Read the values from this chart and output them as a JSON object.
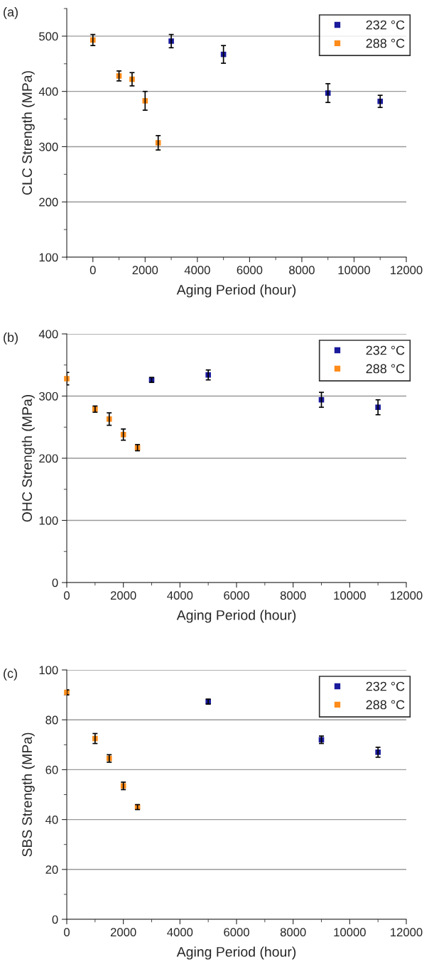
{
  "chart_data": [
    {
      "type": "scatter",
      "title": "(a)",
      "xlabel": "Aging Period (hour)",
      "ylabel": "CLC Strength (MPa)",
      "xlim": [
        -1000,
        12000
      ],
      "xticks": [
        0,
        2000,
        4000,
        6000,
        8000,
        10000,
        12000
      ],
      "ylim": [
        100,
        550
      ],
      "yticks": [
        100,
        200,
        300,
        400,
        500
      ],
      "grid": "y",
      "legend": "top right",
      "marker": "square",
      "series": [
        {
          "name": "232 °C",
          "color": "#1a1a9c",
          "x": [
            3000,
            5000,
            9000,
            11000
          ],
          "values": [
            491,
            467,
            397,
            382
          ],
          "errors": [
            12,
            16,
            17,
            11
          ]
        },
        {
          "name": "288 °C",
          "color": "#ff8c1a",
          "x": [
            0,
            1000,
            1500,
            2000,
            2500
          ],
          "values": [
            493,
            428,
            422,
            383,
            307
          ],
          "errors": [
            10,
            9,
            12,
            17,
            13
          ]
        }
      ]
    },
    {
      "type": "scatter",
      "title": "(b)",
      "xlabel": "Aging Period (hour)",
      "ylabel": "OHC Strength (MPa)",
      "xlim": [
        0,
        12000
      ],
      "xticks": [
        0,
        2000,
        4000,
        6000,
        8000,
        10000,
        12000
      ],
      "ylim": [
        0,
        400
      ],
      "yticks": [
        0,
        100,
        200,
        300,
        400
      ],
      "grid": "y",
      "legend": "top right",
      "marker": "square",
      "series": [
        {
          "name": "232 °C",
          "color": "#1a1a9c",
          "x": [
            3000,
            5000,
            9000,
            11000
          ],
          "values": [
            326,
            334,
            294,
            282
          ],
          "errors": [
            4,
            8,
            12,
            12
          ]
        },
        {
          "name": "288 °C",
          "color": "#ff8c1a",
          "x": [
            0,
            1000,
            1500,
            2000,
            2500
          ],
          "values": [
            328,
            279,
            263,
            238,
            217
          ],
          "errors": [
            10,
            5,
            10,
            9,
            5
          ]
        }
      ]
    },
    {
      "type": "scatter",
      "title": "(c)",
      "xlabel": "Aging Period (hour)",
      "ylabel": "SBS Strength (MPa)",
      "xlim": [
        0,
        12000
      ],
      "xticks": [
        0,
        2000,
        4000,
        6000,
        8000,
        10000,
        12000
      ],
      "ylim": [
        0,
        100
      ],
      "yticks": [
        0,
        20,
        40,
        60,
        80,
        100
      ],
      "grid": "y",
      "legend": "top right",
      "marker": "square",
      "series": [
        {
          "name": "232 °C",
          "color": "#1a1a9c",
          "x": [
            5000,
            9000,
            11000
          ],
          "values": [
            87.3,
            72,
            67
          ],
          "errors": [
            1,
            1.5,
            2
          ]
        },
        {
          "name": "288 °C",
          "color": "#ff8c1a",
          "x": [
            0,
            1000,
            1500,
            2000,
            2500
          ],
          "values": [
            91,
            72.5,
            64.5,
            53.5,
            45
          ],
          "errors": [
            1,
            2,
            1.5,
            1.5,
            1
          ]
        }
      ]
    }
  ]
}
